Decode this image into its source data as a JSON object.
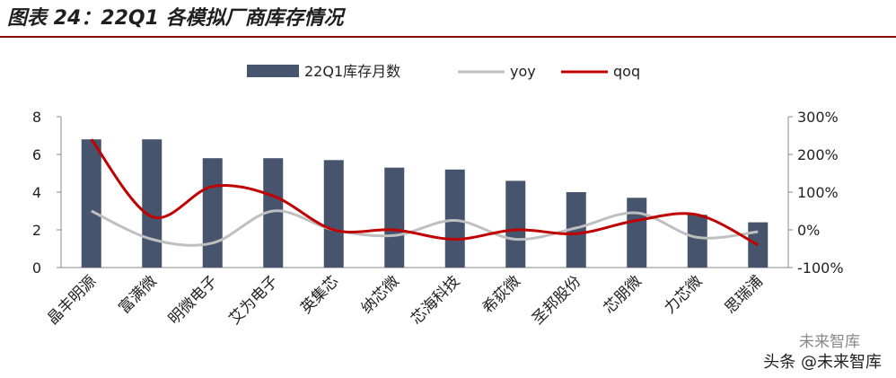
{
  "title": "图表 24：22Q1 各模拟厂商库存情况",
  "watermark": "头条 @未来智库",
  "watermark_faint": "未来智库",
  "colors": {
    "bar": "#46546e",
    "yoy": "#bfbfbf",
    "qoq": "#c00000",
    "title_rule": "#8b0000"
  },
  "chart_data": {
    "type": "bar",
    "categories": [
      "晶丰明源",
      "富满微",
      "明微电子",
      "艾为电子",
      "英集芯",
      "纳芯微",
      "芯海科技",
      "希荻微",
      "圣邦股份",
      "芯朋微",
      "力芯微",
      "思瑞浦"
    ],
    "series": [
      {
        "name": "22Q1库存月数",
        "type": "bar",
        "axis": "left",
        "values": [
          6.8,
          6.8,
          5.8,
          5.8,
          5.7,
          5.3,
          5.2,
          4.6,
          4.0,
          3.7,
          2.8,
          2.4
        ]
      },
      {
        "name": "yoy",
        "type": "line",
        "axis": "right",
        "values": [
          50,
          -25,
          -35,
          50,
          0,
          -15,
          25,
          -25,
          5,
          45,
          -20,
          -5
        ]
      },
      {
        "name": "qoq",
        "type": "line",
        "axis": "right",
        "values": [
          240,
          35,
          115,
          90,
          0,
          0,
          -25,
          0,
          -10,
          25,
          40,
          -40
        ]
      }
    ],
    "y_left": {
      "lim": [
        0,
        8
      ],
      "ticks": [
        "0",
        "2",
        "4",
        "6",
        "8"
      ]
    },
    "y_right": {
      "lim": [
        -100,
        300
      ],
      "ticks": [
        "-100%",
        "0%",
        "100%",
        "200%",
        "300%"
      ]
    },
    "legend": "top-center"
  }
}
